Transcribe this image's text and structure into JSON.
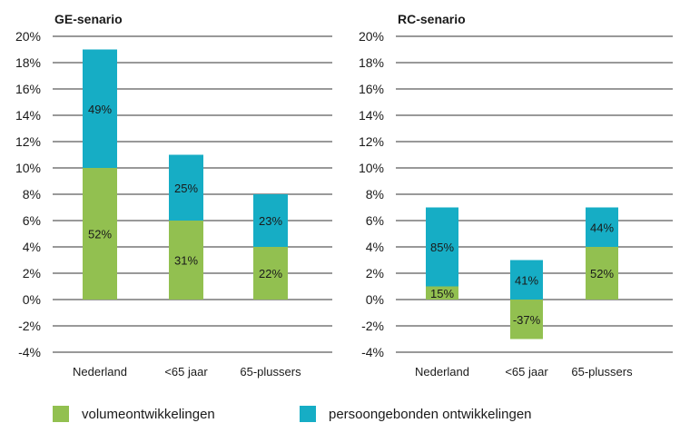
{
  "colors": {
    "volume": "#92c050",
    "person": "#16adc5"
  },
  "legend": [
    {
      "label": "volumeontwikkelingen",
      "color": "#92c050"
    },
    {
      "label": "persoongebonden ontwikkelingen",
      "color": "#16adc5"
    }
  ],
  "chart_data": [
    {
      "type": "bar",
      "stacked": true,
      "title": "GE-senario",
      "categories": [
        "Nederland",
        "<65 jaar",
        "65-plussers"
      ],
      "ylim": [
        -4,
        20
      ],
      "yticks": [
        "20%",
        "18%",
        "16%",
        "14%",
        "12%",
        "10%",
        "8%",
        "6%",
        "4%",
        "2%",
        "0%",
        "-2%",
        "-4%"
      ],
      "grid": true,
      "series": [
        {
          "name": "volumeontwikkelingen",
          "values": [
            10,
            6,
            4
          ],
          "labels": [
            "52%",
            "31%",
            "22%"
          ]
        },
        {
          "name": "persoongebonden ontwikkelingen",
          "values": [
            9,
            5,
            4
          ],
          "labels": [
            "49%",
            "25%",
            "23%"
          ]
        }
      ]
    },
    {
      "type": "bar",
      "stacked": true,
      "title": "RC-senario",
      "categories": [
        "Nederland",
        "<65 jaar",
        "65-plussers"
      ],
      "ylim": [
        -4,
        20
      ],
      "yticks": [
        "20%",
        "18%",
        "16%",
        "14%",
        "12%",
        "10%",
        "8%",
        "6%",
        "4%",
        "2%",
        "0%",
        "-2%",
        "-4%"
      ],
      "grid": true,
      "series": [
        {
          "name": "volumeontwikkelingen",
          "values": [
            1,
            -3,
            4
          ],
          "labels": [
            "15%",
            "-37%",
            "52%"
          ]
        },
        {
          "name": "persoongebonden ontwikkelingen",
          "values": [
            6,
            3,
            3
          ],
          "labels": [
            "85%",
            "41%",
            "44%"
          ]
        }
      ]
    }
  ]
}
